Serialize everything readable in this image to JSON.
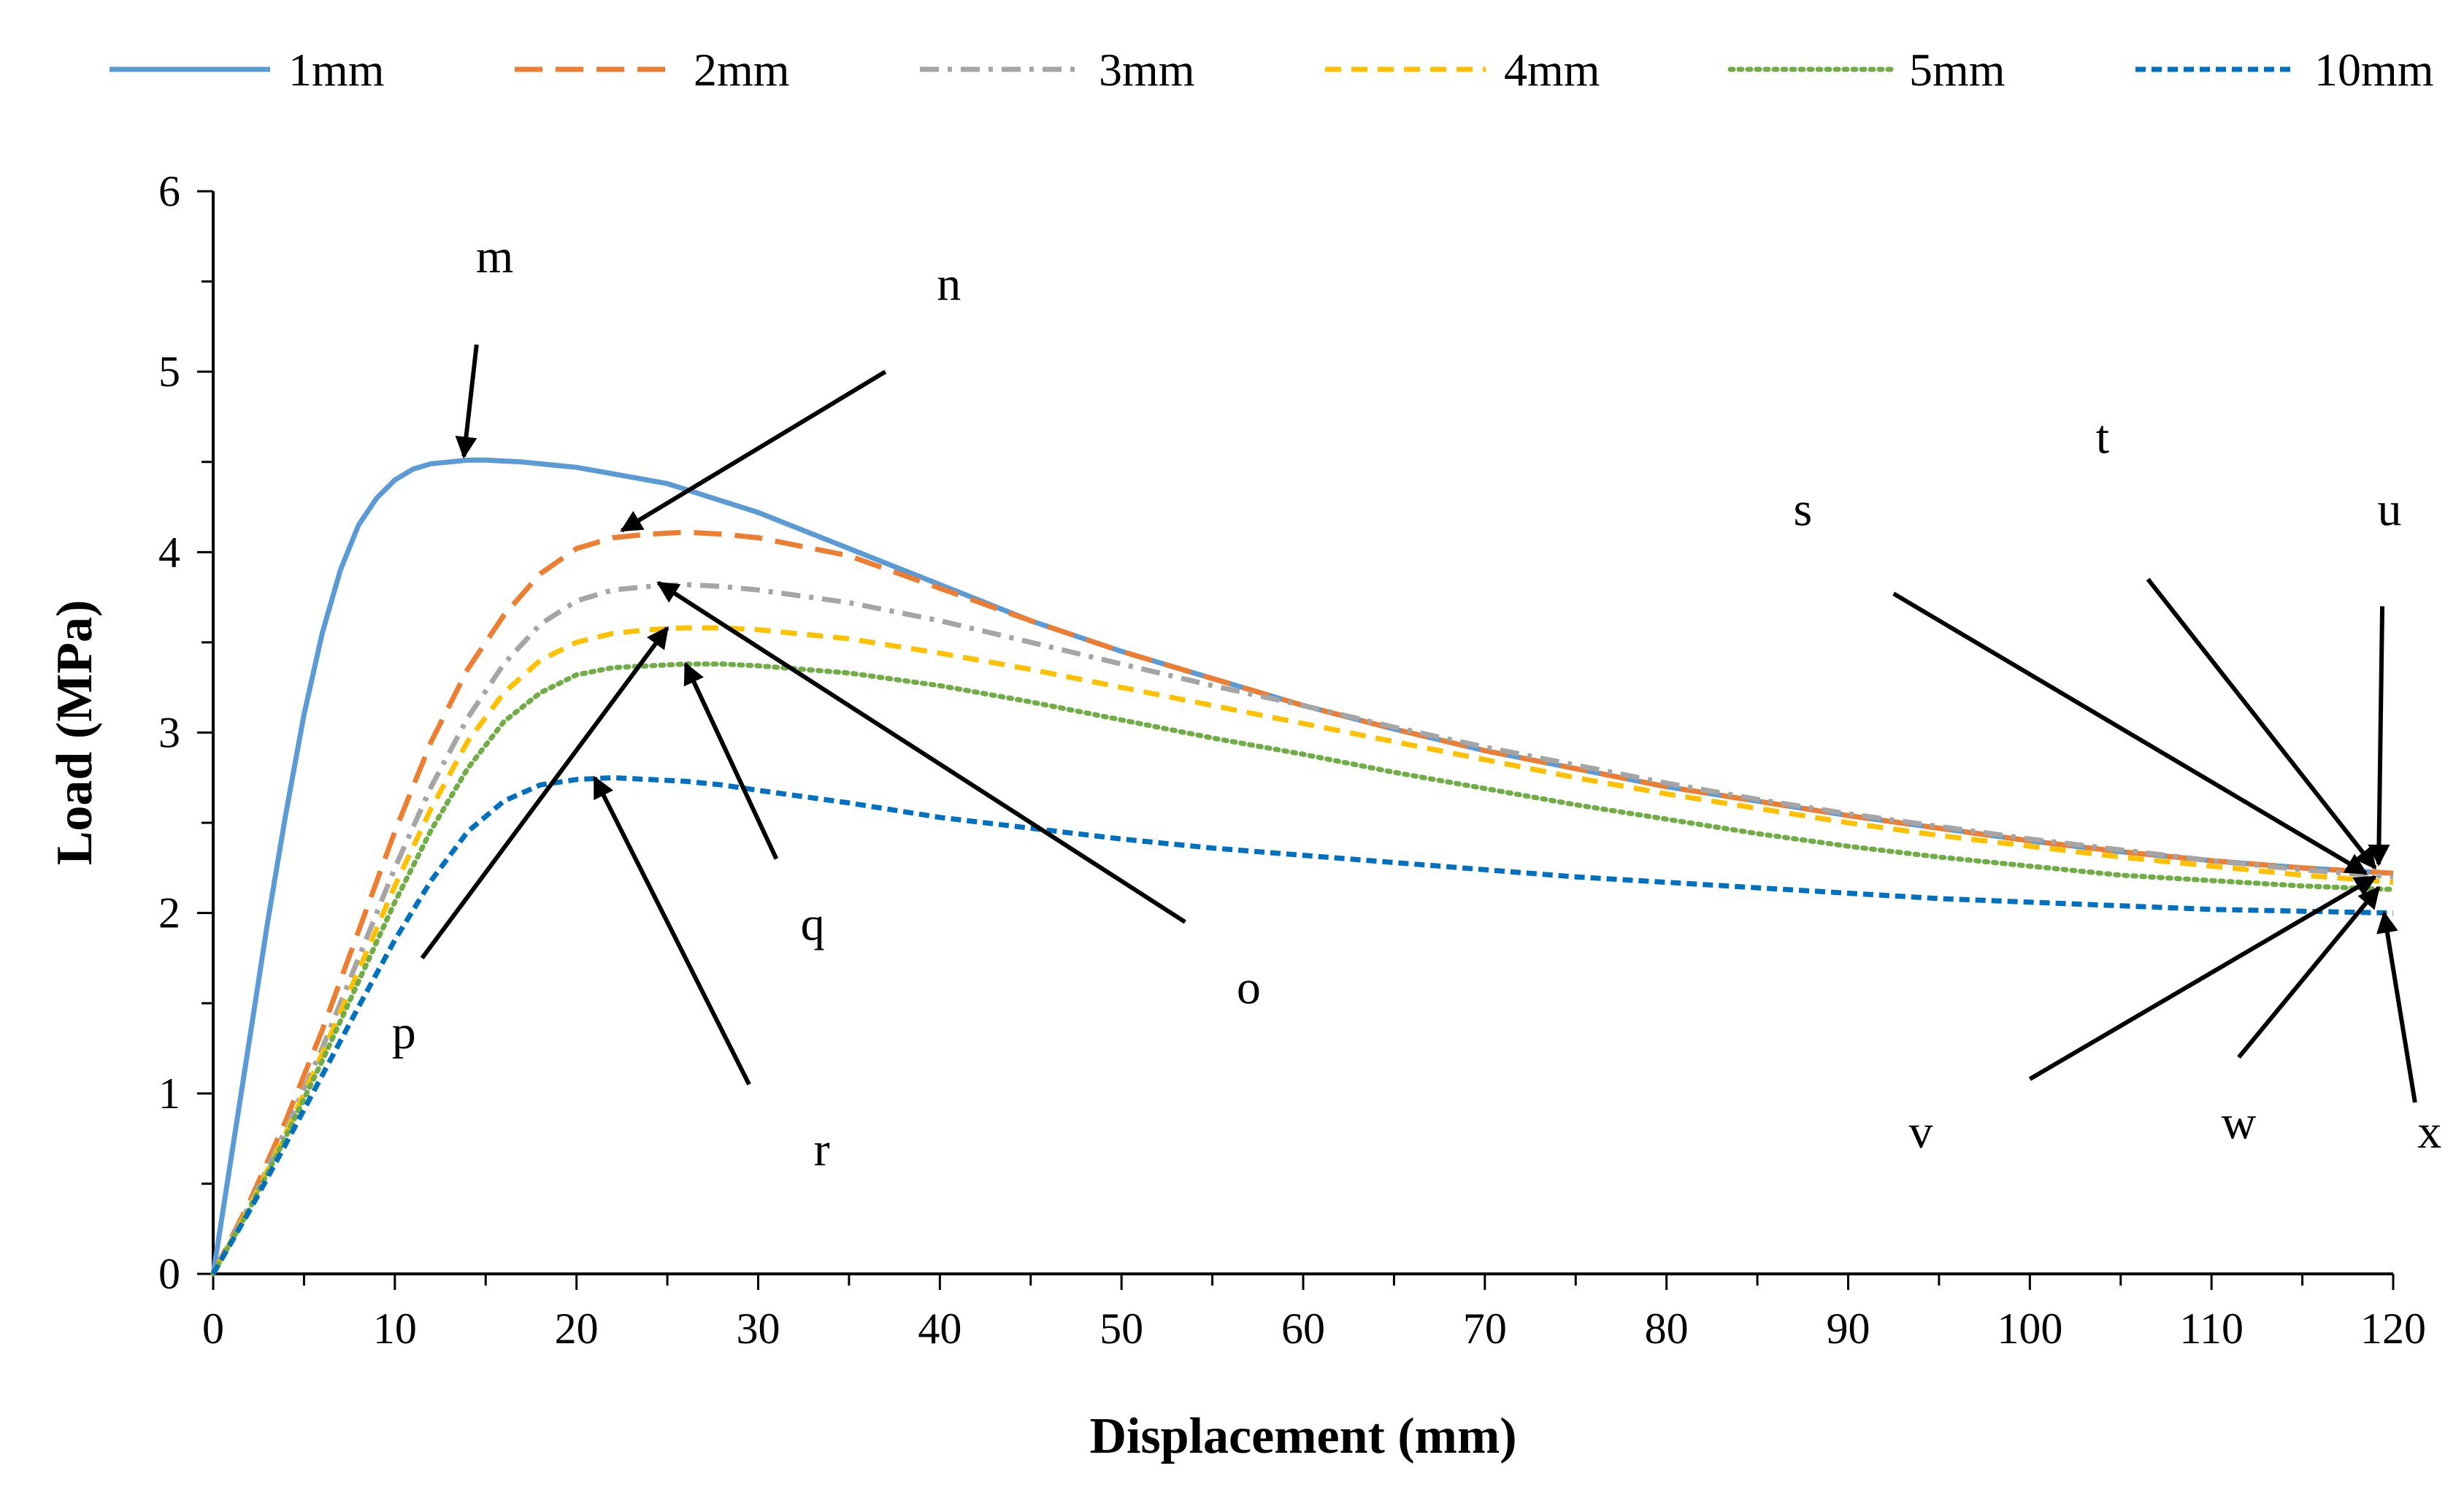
{
  "chart_data": {
    "type": "line",
    "title": "",
    "xlabel": "Displacement (mm)",
    "ylabel": "Load (MPa)",
    "xlim": [
      0,
      120
    ],
    "ylim": [
      0,
      6
    ],
    "xticks": [
      0,
      10,
      20,
      30,
      40,
      50,
      60,
      70,
      80,
      90,
      100,
      110,
      120
    ],
    "yticks": [
      0,
      1,
      2,
      3,
      4,
      5,
      6
    ],
    "grid": false,
    "legend_position": "top",
    "series": [
      {
        "name": "1mm",
        "color": "#5B9BD5",
        "dash": "solid",
        "x": [
          0,
          1,
          2,
          3,
          4,
          5,
          6,
          7,
          8,
          9,
          10,
          11,
          12,
          13,
          14,
          15,
          17,
          20,
          25,
          30,
          35,
          40,
          45,
          50,
          55,
          60,
          65,
          70,
          75,
          80,
          85,
          90,
          95,
          100,
          105,
          110,
          115,
          120
        ],
        "y": [
          0,
          0.65,
          1.3,
          1.95,
          2.55,
          3.1,
          3.55,
          3.9,
          4.15,
          4.3,
          4.4,
          4.46,
          4.49,
          4.5,
          4.51,
          4.51,
          4.5,
          4.47,
          4.38,
          4.22,
          4.02,
          3.82,
          3.62,
          3.45,
          3.3,
          3.15,
          3.02,
          2.9,
          2.8,
          2.7,
          2.62,
          2.54,
          2.47,
          2.4,
          2.34,
          2.29,
          2.25,
          2.22
        ]
      },
      {
        "name": "2mm",
        "color": "#ED7D31",
        "dash": "long-dash",
        "x": [
          0,
          2,
          4,
          6,
          8,
          10,
          12,
          14,
          16,
          18,
          20,
          22,
          24,
          26,
          28,
          30,
          35,
          40,
          45,
          50,
          55,
          60,
          65,
          70,
          75,
          80,
          85,
          90,
          95,
          100,
          105,
          110,
          115,
          120
        ],
        "y": [
          0,
          0.4,
          0.85,
          1.35,
          1.9,
          2.45,
          2.95,
          3.35,
          3.65,
          3.88,
          4.02,
          4.08,
          4.1,
          4.11,
          4.1,
          4.08,
          3.98,
          3.8,
          3.62,
          3.45,
          3.3,
          3.15,
          3.02,
          2.9,
          2.8,
          2.7,
          2.62,
          2.54,
          2.47,
          2.4,
          2.34,
          2.29,
          2.25,
          2.22
        ]
      },
      {
        "name": "3mm",
        "color": "#A5A5A5",
        "dash": "dash-dot",
        "x": [
          0,
          2,
          4,
          6,
          8,
          10,
          12,
          14,
          16,
          18,
          20,
          22,
          24,
          26,
          28,
          30,
          35,
          40,
          45,
          50,
          55,
          60,
          65,
          70,
          75,
          80,
          85,
          90,
          95,
          100,
          105,
          110,
          115,
          120
        ],
        "y": [
          0,
          0.38,
          0.8,
          1.25,
          1.75,
          2.25,
          2.7,
          3.08,
          3.38,
          3.6,
          3.73,
          3.79,
          3.81,
          3.82,
          3.81,
          3.79,
          3.72,
          3.62,
          3.5,
          3.38,
          3.26,
          3.15,
          3.03,
          2.92,
          2.82,
          2.72,
          2.63,
          2.55,
          2.48,
          2.41,
          2.35,
          2.29,
          2.24,
          2.2
        ]
      },
      {
        "name": "4mm",
        "color": "#FFC000",
        "dash": "dash",
        "x": [
          0,
          2,
          4,
          6,
          8,
          10,
          12,
          14,
          16,
          18,
          20,
          22,
          24,
          26,
          28,
          30,
          35,
          40,
          45,
          50,
          55,
          60,
          65,
          70,
          75,
          80,
          85,
          90,
          95,
          100,
          105,
          110,
          115,
          120
        ],
        "y": [
          0,
          0.37,
          0.78,
          1.22,
          1.68,
          2.15,
          2.58,
          2.95,
          3.22,
          3.4,
          3.5,
          3.55,
          3.57,
          3.58,
          3.58,
          3.57,
          3.52,
          3.44,
          3.35,
          3.25,
          3.15,
          3.05,
          2.95,
          2.85,
          2.75,
          2.66,
          2.58,
          2.5,
          2.43,
          2.37,
          2.31,
          2.26,
          2.21,
          2.17
        ]
      },
      {
        "name": "5mm",
        "color": "#70AD47",
        "dash": "dotted",
        "x": [
          0,
          2,
          4,
          6,
          8,
          10,
          12,
          14,
          16,
          18,
          20,
          22,
          24,
          26,
          28,
          30,
          35,
          40,
          45,
          50,
          55,
          60,
          65,
          70,
          75,
          80,
          85,
          90,
          95,
          100,
          105,
          110,
          115,
          120
        ],
        "y": [
          0,
          0.36,
          0.76,
          1.18,
          1.62,
          2.06,
          2.46,
          2.8,
          3.06,
          3.22,
          3.32,
          3.36,
          3.37,
          3.38,
          3.38,
          3.37,
          3.33,
          3.26,
          3.17,
          3.07,
          2.97,
          2.88,
          2.78,
          2.69,
          2.6,
          2.52,
          2.44,
          2.37,
          2.31,
          2.26,
          2.21,
          2.18,
          2.15,
          2.13
        ]
      },
      {
        "name": "10mm",
        "color": "#0070C0",
        "dash": "short-dash",
        "x": [
          0,
          2,
          4,
          6,
          8,
          10,
          12,
          14,
          16,
          18,
          20,
          22,
          24,
          26,
          28,
          30,
          35,
          40,
          45,
          50,
          55,
          60,
          65,
          70,
          75,
          80,
          85,
          90,
          95,
          100,
          105,
          110,
          115,
          120
        ],
        "y": [
          0,
          0.35,
          0.72,
          1.1,
          1.48,
          1.85,
          2.18,
          2.45,
          2.62,
          2.71,
          2.74,
          2.75,
          2.74,
          2.73,
          2.71,
          2.68,
          2.61,
          2.53,
          2.47,
          2.41,
          2.36,
          2.32,
          2.28,
          2.24,
          2.2,
          2.17,
          2.14,
          2.11,
          2.08,
          2.06,
          2.04,
          2.02,
          2.01,
          2.0
        ]
      }
    ],
    "annotations": [
      {
        "label": "m",
        "text_at": [
          15.5,
          5.55
        ],
        "tail": [
          14.5,
          5.15
        ],
        "head": [
          13.8,
          4.53
        ]
      },
      {
        "label": "n",
        "text_at": [
          40.5,
          5.4
        ],
        "tail": [
          37.0,
          5.0
        ],
        "head": [
          22.5,
          4.12
        ]
      },
      {
        "label": "o",
        "text_at": [
          57.0,
          1.5
        ],
        "tail": [
          53.5,
          1.95
        ],
        "head": [
          24.5,
          3.83
        ]
      },
      {
        "label": "p",
        "text_at": [
          10.5,
          1.25
        ],
        "tail": [
          11.5,
          1.75
        ],
        "head": [
          25.0,
          3.58
        ]
      },
      {
        "label": "q",
        "text_at": [
          33.0,
          1.85
        ],
        "tail": [
          31.0,
          2.3
        ],
        "head": [
          26.0,
          3.38
        ]
      },
      {
        "label": "r",
        "text_at": [
          33.5,
          0.6
        ],
        "tail": [
          29.5,
          1.05
        ],
        "head": [
          21.0,
          2.75
        ]
      },
      {
        "label": "s",
        "text_at": [
          87.5,
          4.15
        ],
        "tail": [
          92.5,
          3.77
        ],
        "head": [
          118.5,
          2.22
        ]
      },
      {
        "label": "t",
        "text_at": [
          104.0,
          4.55
        ],
        "tail": [
          106.5,
          3.85
        ],
        "head": [
          119.0,
          2.25
        ]
      },
      {
        "label": "u",
        "text_at": [
          119.8,
          4.15
        ],
        "tail": [
          119.4,
          3.7
        ],
        "head": [
          119.2,
          2.27
        ]
      },
      {
        "label": "v",
        "text_at": [
          94.0,
          0.7
        ],
        "tail": [
          100.0,
          1.08
        ],
        "head": [
          119.0,
          2.2
        ]
      },
      {
        "label": "w",
        "text_at": [
          111.5,
          0.75
        ],
        "tail": [
          111.5,
          1.2
        ],
        "head": [
          119.2,
          2.14
        ]
      },
      {
        "label": "x",
        "text_at": [
          122.0,
          0.7
        ],
        "tail": [
          121.2,
          0.95
        ],
        "head": [
          119.5,
          2.0
        ]
      }
    ]
  }
}
